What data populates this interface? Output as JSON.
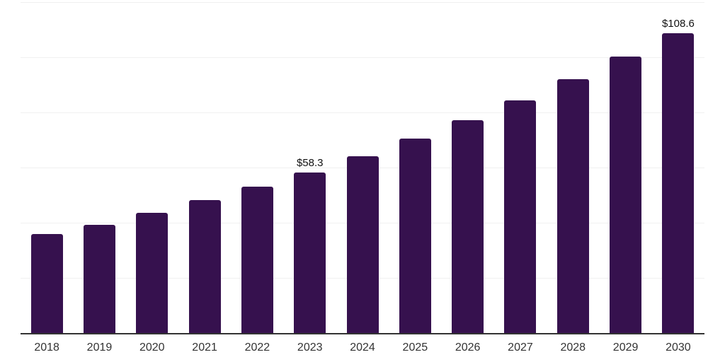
{
  "chart_data": {
    "type": "bar",
    "title": "",
    "xlabel": "",
    "ylabel": "",
    "categories": [
      "2018",
      "2019",
      "2020",
      "2021",
      "2022",
      "2023",
      "2024",
      "2025",
      "2026",
      "2027",
      "2028",
      "2029",
      "2030"
    ],
    "values": [
      36.0,
      39.3,
      43.6,
      48.2,
      53.0,
      58.3,
      64.2,
      70.6,
      77.2,
      84.4,
      92.1,
      100.2,
      108.6
    ],
    "point_labels": [
      "",
      "",
      "",
      "",
      "",
      "$58.3",
      "",
      "",
      "",
      "",
      "",
      "",
      "$108.6"
    ],
    "ylim": [
      0,
      120
    ],
    "grid_step": 20,
    "grid": "horizontal-only",
    "legend_position": "none",
    "colors": {
      "bar": "#36114E",
      "gridline": "#f0f0f0",
      "axis": "#333333",
      "tick_label": "#333333",
      "value_label": "#111111",
      "background": "#ffffff"
    }
  }
}
